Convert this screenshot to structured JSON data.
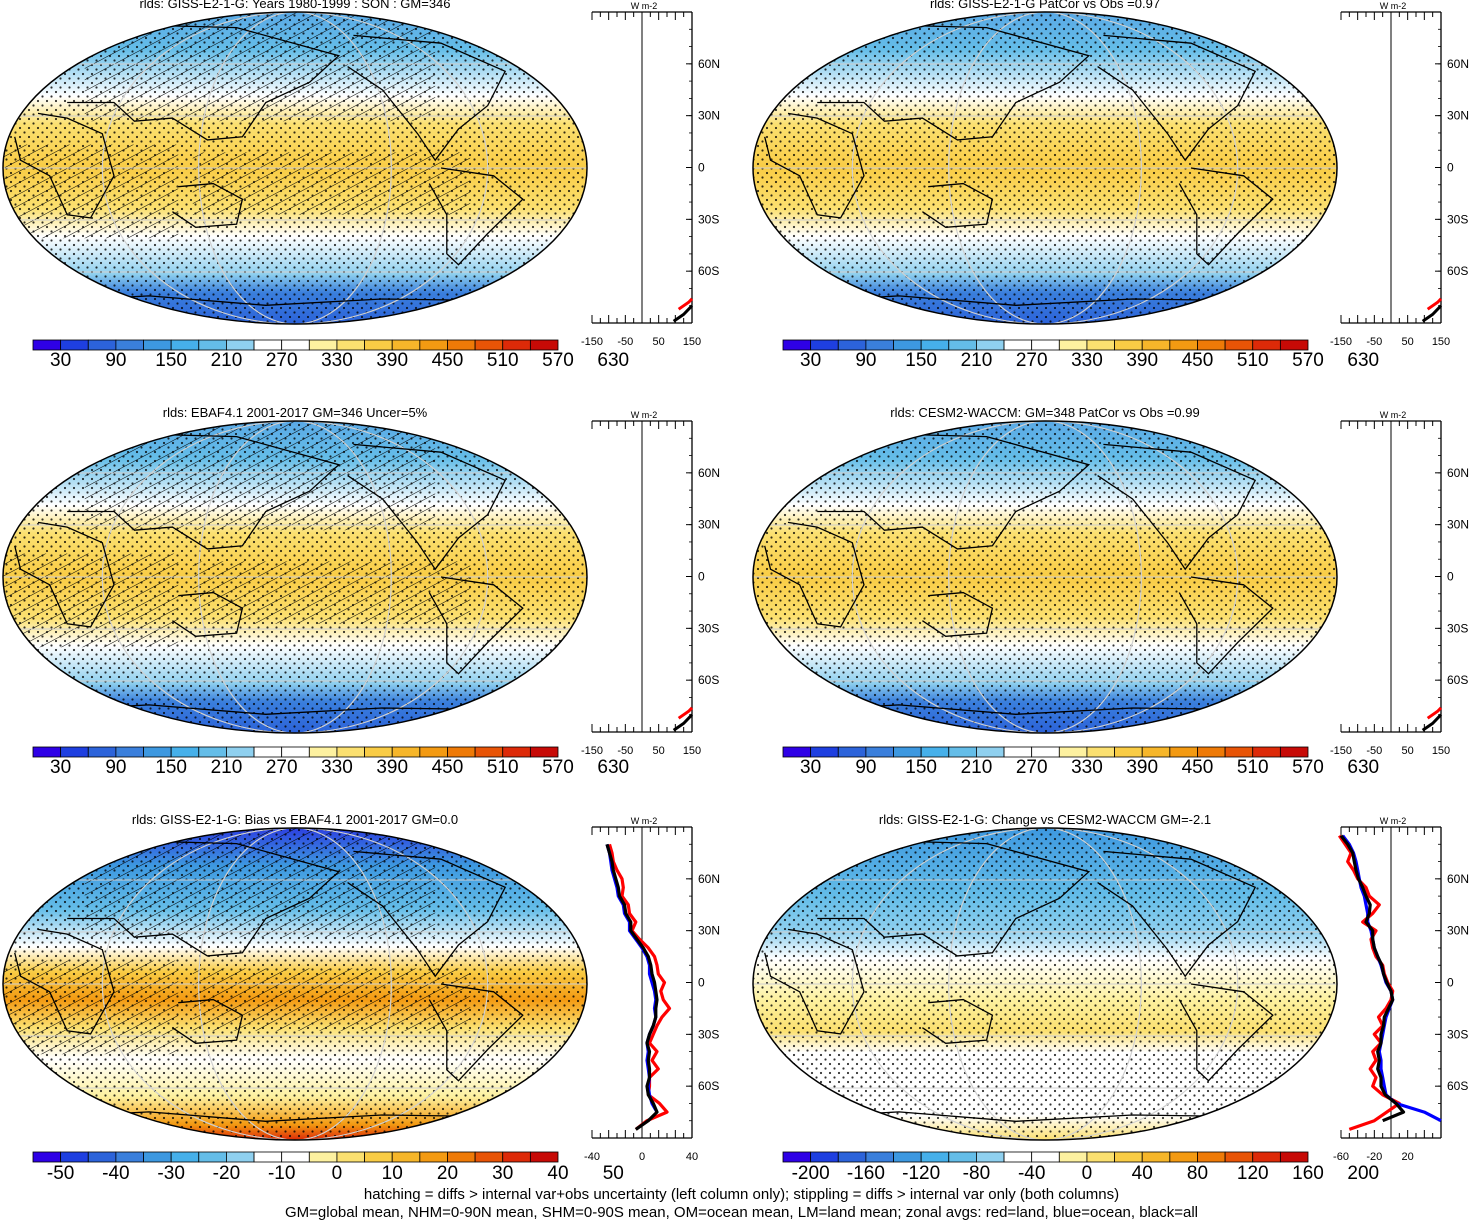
{
  "footer": {
    "line1": "hatching = diffs > internal var+obs uncertainty (left column only); stippling = diffs > internal var only (both columns)",
    "line2": "GM=global mean, NHM=0-90N mean, SHM=0-90S mean, OM=ocean mean, LM=land mean; zonal avgs: red=land, blue=ocean, black=all"
  },
  "palette": [
    "#2e00e6",
    "#1e3fe0",
    "#2c63da",
    "#3a7fdc",
    "#3d98e0",
    "#46b0ea",
    "#64bde8",
    "#8fd0ef",
    "#ffffff",
    "#ffffff",
    "#fdf1a0",
    "#fbe070",
    "#f9cc45",
    "#f6b62a",
    "#f39a12",
    "#ee7a07",
    "#e85406",
    "#dd2a08",
    "#c70a06"
  ],
  "colors": {
    "land": "#ff0000",
    "ocean": "#0000ff",
    "all": "#000000"
  },
  "chart_data": [
    {
      "type": "heatmap",
      "variable": "rlds",
      "title": "rlds: GISS-E2-1-G: Years 1980-1999 : SON : GM=346",
      "hatching": true,
      "stippling": true,
      "colorbar_labels": [
        "30",
        "90",
        "150",
        "210",
        "270",
        "330",
        "390",
        "450",
        "510",
        "570",
        "630"
      ],
      "zonal_mean": {
        "units": "W m-2",
        "xticklabels": [
          "-150",
          "-50",
          "50",
          "150"
        ],
        "yticklabels": [
          "60N",
          "30N",
          "0",
          "30S",
          "60S"
        ],
        "xlim": [
          -150,
          150
        ],
        "ylim": [
          -90,
          90
        ]
      }
    },
    {
      "type": "heatmap",
      "variable": "rlds",
      "title": "rlds: GISS-E2-1-G PatCor vs Obs =0.97",
      "hatching": false,
      "stippling": true,
      "colorbar_labels": [
        "30",
        "90",
        "150",
        "210",
        "270",
        "330",
        "390",
        "450",
        "510",
        "570",
        "630"
      ],
      "zonal_mean": {
        "units": "W m-2",
        "xticklabels": [
          "-150",
          "-50",
          "50",
          "150"
        ],
        "yticklabels": [
          "60N",
          "30N",
          "0",
          "30S",
          "60S"
        ],
        "xlim": [
          -150,
          150
        ],
        "ylim": [
          -90,
          90
        ]
      }
    },
    {
      "type": "heatmap",
      "variable": "rlds",
      "title": "rlds: EBAF4.1 2001-2017 GM=346 Uncer=5%",
      "hatching": true,
      "stippling": true,
      "colorbar_labels": [
        "30",
        "90",
        "150",
        "210",
        "270",
        "330",
        "390",
        "450",
        "510",
        "570",
        "630"
      ],
      "zonal_mean": {
        "units": "W m-2",
        "xticklabels": [
          "-150",
          "-50",
          "50",
          "150"
        ],
        "yticklabels": [
          "60N",
          "30N",
          "0",
          "30S",
          "60S"
        ],
        "xlim": [
          -150,
          150
        ],
        "ylim": [
          -90,
          90
        ]
      }
    },
    {
      "type": "heatmap",
      "variable": "rlds",
      "title": "rlds: CESM2-WACCM: GM=348 PatCor vs Obs =0.99",
      "hatching": false,
      "stippling": true,
      "colorbar_labels": [
        "30",
        "90",
        "150",
        "210",
        "270",
        "330",
        "390",
        "450",
        "510",
        "570",
        "630"
      ],
      "zonal_mean": {
        "units": "W m-2",
        "xticklabels": [
          "-150",
          "-50",
          "50",
          "150"
        ],
        "yticklabels": [
          "60N",
          "30N",
          "0",
          "30S",
          "60S"
        ],
        "xlim": [
          -150,
          150
        ],
        "ylim": [
          -90,
          90
        ]
      }
    },
    {
      "type": "heatmap",
      "variable": "rlds",
      "title": "rlds: GISS-E2-1-G: Bias vs EBAF4.1 2001-2017  GM=0.0",
      "hatching": true,
      "stippling": true,
      "colorbar_labels": [
        "-50",
        "-40",
        "-30",
        "-20",
        "-10",
        "0",
        "10",
        "20",
        "30",
        "40",
        "50"
      ],
      "zonal_mean": {
        "units": "W m-2",
        "xticklabels": [
          "-40",
          "0",
          "40"
        ],
        "yticklabels": [
          "60N",
          "30N",
          "0",
          "30S",
          "60S"
        ],
        "xlim": [
          -40,
          40
        ],
        "ylim": [
          -90,
          90
        ],
        "series": [
          {
            "name": "land",
            "lat": [
              80,
              75,
              70,
              65,
              60,
              55,
              50,
              45,
              40,
              35,
              30,
              25,
              20,
              15,
              10,
              5,
              0,
              -5,
              -10,
              -15,
              -20,
              -25,
              -30,
              -35,
              -40,
              -45,
              -50,
              -55,
              -60,
              -65,
              -70,
              -75,
              -80,
              -85
            ],
            "values": [
              -26,
              -24,
              -23,
              -20,
              -16,
              -15,
              -16,
              -11,
              -10,
              -5,
              -8,
              -2,
              5,
              10,
              12,
              13,
              18,
              15,
              17,
              22,
              16,
              12,
              9,
              6,
              12,
              8,
              13,
              6,
              6,
              5,
              14,
              20,
              4,
              -5
            ]
          },
          {
            "name": "ocean",
            "lat": [
              80,
              75,
              70,
              65,
              60,
              55,
              50,
              45,
              40,
              35,
              30,
              25,
              20,
              15,
              10,
              5,
              0,
              -5,
              -10,
              -15,
              -20,
              -25,
              -30,
              -35,
              -40,
              -45,
              -50,
              -55,
              -60,
              -65,
              -70,
              -75
            ],
            "values": [
              -28,
              -26,
              -25,
              -24,
              -22,
              -20,
              -19,
              -15,
              -14,
              -10,
              -10,
              -5,
              0,
              4,
              6,
              6,
              8,
              10,
              11,
              10,
              11,
              9,
              6,
              4,
              5,
              4,
              5,
              6,
              5,
              6,
              8,
              12
            ]
          },
          {
            "name": "all",
            "lat": [
              80,
              75,
              70,
              65,
              60,
              55,
              50,
              45,
              40,
              35,
              30,
              25,
              20,
              15,
              10,
              5,
              0,
              -5,
              -10,
              -15,
              -20,
              -25,
              -30,
              -35,
              -40,
              -45,
              -50,
              -55,
              -60,
              -65,
              -70,
              -75,
              -80,
              -85
            ],
            "values": [
              -28,
              -26,
              -24,
              -23,
              -21,
              -19,
              -18,
              -14,
              -13,
              -9,
              -9,
              -4,
              1,
              5,
              7,
              8,
              10,
              11,
              12,
              11,
              11,
              9,
              6,
              4,
              6,
              5,
              6,
              6,
              4,
              5,
              9,
              12,
              5,
              -5
            ]
          }
        ]
      }
    },
    {
      "type": "heatmap",
      "variable": "rlds",
      "title": "rlds: GISS-E2-1-G: Change vs CESM2-WACCM GM=-2.1",
      "hatching": false,
      "stippling": true,
      "colorbar_labels": [
        "-200",
        "-160",
        "-120",
        "-80",
        "-40",
        "0",
        "40",
        "80",
        "120",
        "160",
        "200"
      ],
      "zonal_mean": {
        "units": "W m-2",
        "xticklabels": [
          "-60",
          "-20",
          "20"
        ],
        "yticklabels": [
          "60N",
          "30N",
          "0",
          "30S",
          "60S"
        ],
        "xlim": [
          -60,
          60
        ],
        "ylim": [
          -90,
          90
        ],
        "series": [
          {
            "name": "land",
            "lat": [
              85,
              80,
              75,
              70,
              65,
              60,
              55,
              50,
              45,
              40,
              35,
              30,
              25,
              20,
              15,
              10,
              5,
              0,
              -5,
              -10,
              -15,
              -20,
              -25,
              -30,
              -35,
              -40,
              -45,
              -50,
              -55,
              -60,
              -65,
              -70,
              -75,
              -80,
              -85
            ],
            "values": [
              -62,
              -55,
              -48,
              -52,
              -45,
              -40,
              -30,
              -26,
              -14,
              -22,
              -34,
              -18,
              -24,
              -22,
              -18,
              -10,
              -8,
              -4,
              2,
              0,
              -6,
              -15,
              -10,
              -20,
              -12,
              -22,
              -18,
              -25,
              -18,
              -22,
              -10,
              10,
              -5,
              -20,
              -50
            ]
          },
          {
            "name": "ocean",
            "lat": [
              85,
              80,
              75,
              70,
              65,
              60,
              55,
              50,
              45,
              40,
              35,
              30,
              25,
              20,
              15,
              10,
              5,
              0,
              -5,
              -10,
              -15,
              -20,
              -25,
              -30,
              -35,
              -40,
              -45,
              -50,
              -55,
              -60,
              -65,
              -70,
              -75,
              -80
            ],
            "values": [
              -58,
              -50,
              -45,
              -42,
              -40,
              -38,
              -36,
              -32,
              -30,
              -28,
              -28,
              -24,
              -22,
              -20,
              -16,
              -12,
              -9,
              -6,
              0,
              2,
              -2,
              -6,
              -8,
              -10,
              -12,
              -14,
              -12,
              -12,
              -10,
              -8,
              -6,
              6,
              40,
              60
            ]
          },
          {
            "name": "all",
            "lat": [
              85,
              80,
              75,
              70,
              65,
              60,
              55,
              50,
              45,
              40,
              35,
              30,
              25,
              20,
              15,
              10,
              5,
              0,
              -5,
              -10,
              -15,
              -20,
              -25,
              -30,
              -35,
              -40,
              -45,
              -50,
              -55,
              -60,
              -65,
              -70,
              -75,
              -80
            ],
            "values": [
              -60,
              -52,
              -46,
              -44,
              -42,
              -39,
              -34,
              -30,
              -25,
              -26,
              -30,
              -22,
              -22,
              -20,
              -16,
              -11,
              -9,
              -5,
              0,
              2,
              -3,
              -8,
              -9,
              -12,
              -12,
              -16,
              -14,
              -16,
              -12,
              -12,
              -7,
              6,
              15,
              -10
            ]
          }
        ]
      }
    }
  ]
}
